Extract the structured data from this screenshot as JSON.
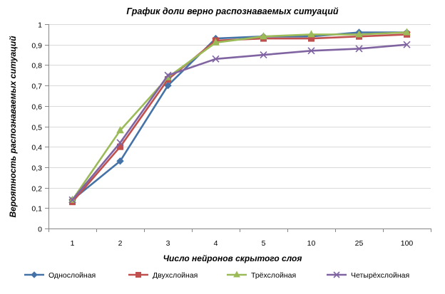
{
  "chart_data": {
    "type": "line",
    "title": "График доли верно распознаваемых ситуаций",
    "xlabel": "Число нейронов скрытого слоя",
    "ylabel": "Вероятность распознаваемых ситуаций",
    "categories": [
      "1",
      "2",
      "3",
      "4",
      "5",
      "10",
      "25",
      "100"
    ],
    "ylim": [
      0,
      1
    ],
    "yticks": [
      "0",
      "0,1",
      "0,2",
      "0,3",
      "0,4",
      "0,5",
      "0,6",
      "0,7",
      "0,8",
      "0,9",
      "1"
    ],
    "grid": true,
    "legend_position": "bottom",
    "series": [
      {
        "name": "Однослойная",
        "color": "#4572a7",
        "marker": "diamond",
        "values": [
          0.14,
          0.33,
          0.7,
          0.93,
          0.94,
          0.94,
          0.96,
          0.96
        ]
      },
      {
        "name": "Двухслойная",
        "color": "#c0504d",
        "marker": "square",
        "values": [
          0.13,
          0.4,
          0.73,
          0.92,
          0.93,
          0.93,
          0.94,
          0.95
        ]
      },
      {
        "name": "Трёхслойная",
        "color": "#9bbb59",
        "marker": "triangle",
        "values": [
          0.14,
          0.48,
          0.74,
          0.91,
          0.94,
          0.95,
          0.95,
          0.96
        ]
      },
      {
        "name": "Четырёхслойная",
        "color": "#8064a2",
        "marker": "x",
        "values": [
          0.14,
          0.42,
          0.75,
          0.83,
          0.85,
          0.87,
          0.88,
          0.9
        ]
      }
    ]
  }
}
